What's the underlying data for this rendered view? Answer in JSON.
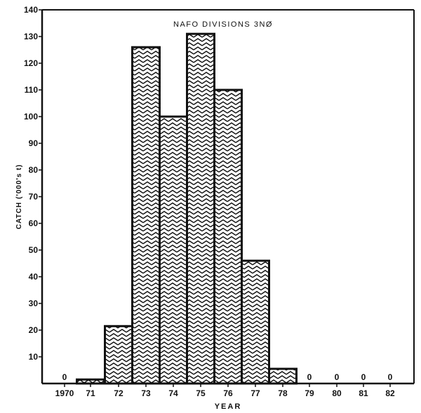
{
  "chart_data": {
    "type": "bar",
    "title": "NAFO DIVISIONS 3NØ",
    "xlabel": "YEAR",
    "ylabel": "CATCH ('000's t)",
    "categories": [
      "1970",
      "71",
      "72",
      "73",
      "74",
      "75",
      "76",
      "77",
      "78",
      "79",
      "80",
      "81",
      "82"
    ],
    "values": [
      0,
      1.5,
      21.5,
      126,
      100,
      131,
      110,
      46,
      5.5,
      0,
      0,
      0,
      0
    ],
    "zero_markers": [
      "1970",
      "79",
      "80",
      "81",
      "82"
    ],
    "zero_marker_label": "0",
    "ylim": [
      0,
      140
    ],
    "yticks": [
      10,
      20,
      30,
      40,
      50,
      60,
      70,
      80,
      90,
      100,
      110,
      120,
      130,
      140
    ],
    "grid": false,
    "legend": null,
    "bar_fill": "chevron hatch pattern",
    "colors": {
      "ink": "#111111",
      "background": "#ffffff"
    }
  }
}
